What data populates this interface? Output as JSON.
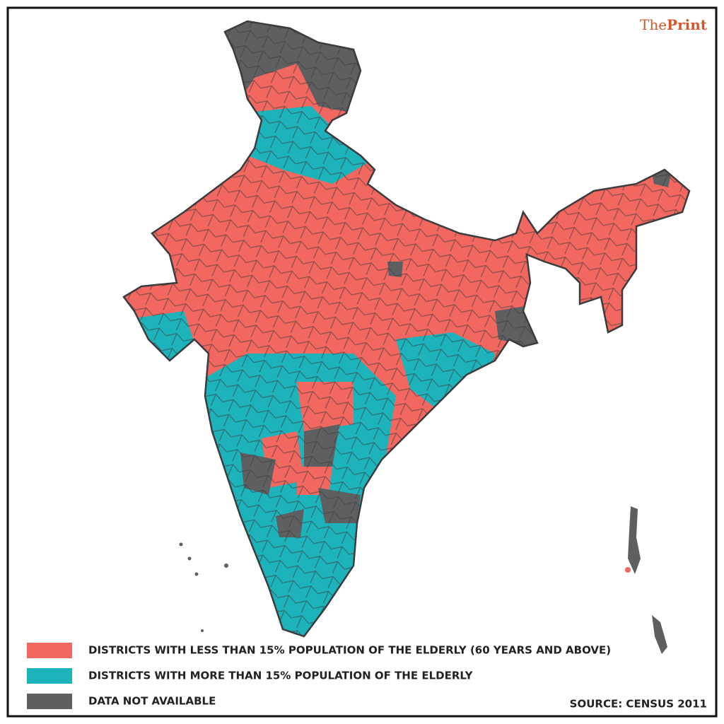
{
  "brand": {
    "prefix": "The",
    "name": "Print"
  },
  "legend": [
    {
      "label": "DISTRICTS WITH LESS THAN 15% POPULATION OF THE ELDERLY (60 YEARS AND ABOVE)",
      "color": "#f2675f"
    },
    {
      "label": "DISTRICTS WITH MORE THAN 15% POPULATION OF THE ELDERLY",
      "color": "#1db3bb"
    },
    {
      "label": "DATA NOT AVAILABLE",
      "color": "#5e5f61"
    }
  ],
  "source": "SOURCE: CENSUS 2011"
}
